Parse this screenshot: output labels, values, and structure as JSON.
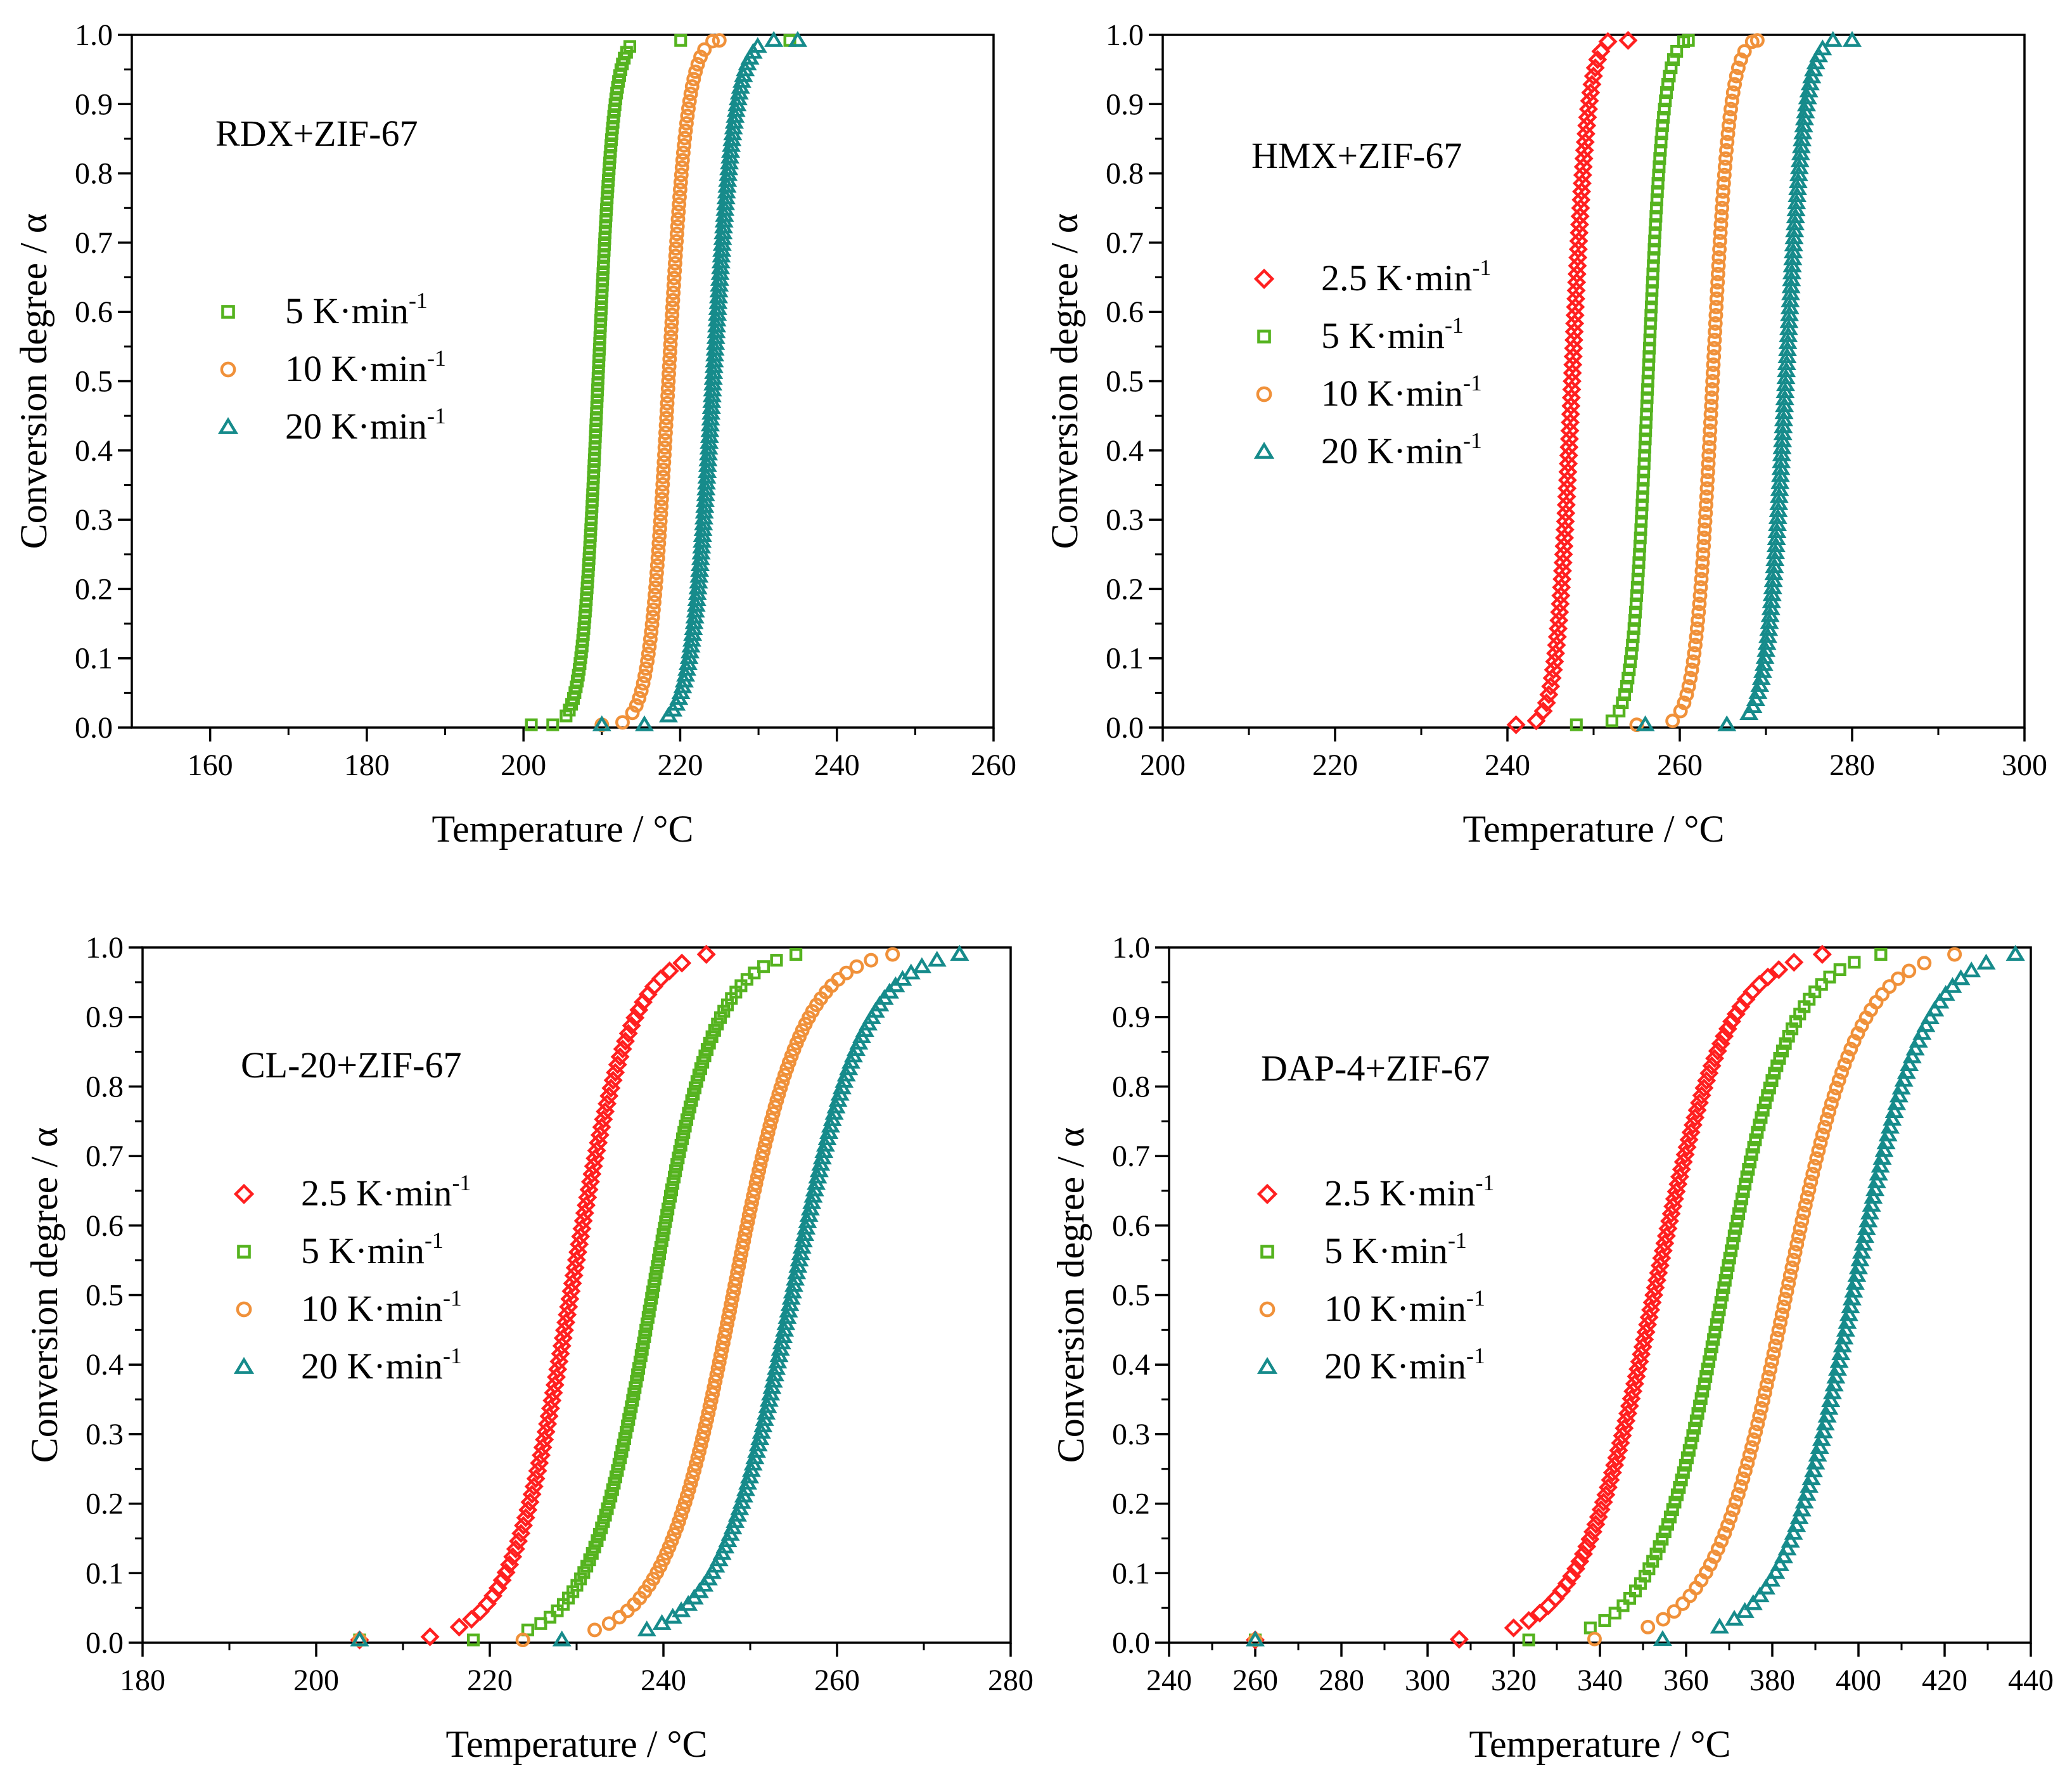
{
  "chart_data": [
    {
      "type": "scatter",
      "panel_label": "RDX+ZIF-67",
      "xlabel": "Temperature / °C",
      "ylabel": "Conversion degree / α",
      "xlim": [
        150,
        260
      ],
      "ylim": [
        0.0,
        1.0
      ],
      "xticks": [
        "160",
        "180",
        "200",
        "220",
        "240",
        "260"
      ],
      "yticks": [
        "0.0",
        "0.1",
        "0.2",
        "0.3",
        "0.4",
        "0.5",
        "0.6",
        "0.7",
        "0.8",
        "0.9",
        "1.0"
      ],
      "legend_position": "left-middle",
      "series": [
        {
          "name": "5 K·min",
          "name_sup": "-1",
          "marker": "square",
          "color": "#55b31f",
          "onset": 201,
          "mid": 209.5,
          "end": 234,
          "width": 1.0,
          "count": 120
        },
        {
          "name": "10 K·min",
          "name_sup": "-1",
          "marker": "circle",
          "color": "#f0913a",
          "onset": 210,
          "mid": 218.5,
          "end": 225,
          "width": 1.2,
          "count": 95
        },
        {
          "name": "20 K·min",
          "name_sup": "-1",
          "marker": "triangle",
          "color": "#168b8b",
          "onset": 210,
          "mid": 224.2,
          "end": 235,
          "width": 1.4,
          "count": 120
        }
      ]
    },
    {
      "type": "scatter",
      "panel_label": "HMX+ZIF-67",
      "xlabel": "Temperature / °C",
      "ylabel": "Conversion degree / α",
      "xlim": [
        200,
        300
      ],
      "ylim": [
        0.0,
        1.0
      ],
      "xticks": [
        "200",
        "220",
        "240",
        "260",
        "280",
        "300"
      ],
      "yticks": [
        "0.0",
        "0.1",
        "0.2",
        "0.3",
        "0.4",
        "0.5",
        "0.6",
        "0.7",
        "0.8",
        "0.9",
        "1.0"
      ],
      "legend_position": "left-middle",
      "series": [
        {
          "name": "2.5 K·min",
          "name_sup": "-1",
          "marker": "diamond",
          "color": "#ff2020",
          "onset": 241,
          "mid": 247.5,
          "end": 254,
          "width": 0.9,
          "count": 85
        },
        {
          "name": "5 K·min",
          "name_sup": "-1",
          "marker": "square",
          "color": "#55b31f",
          "onset": 248,
          "mid": 256.3,
          "end": 261,
          "width": 0.9,
          "count": 85
        },
        {
          "name": "10 K·min",
          "name_sup": "-1",
          "marker": "circle",
          "color": "#f0913a",
          "onset": 255,
          "mid": 263.8,
          "end": 269,
          "width": 1.0,
          "count": 85
        },
        {
          "name": "20 K·min",
          "name_sup": "-1",
          "marker": "triangle",
          "color": "#168b8b",
          "onset": 256,
          "mid": 272.3,
          "end": 280,
          "width": 1.1,
          "count": 100
        }
      ]
    },
    {
      "type": "scatter",
      "panel_label": "CL-20+ZIF-67",
      "xlabel": "Temperature / °C",
      "ylabel": "Conversion degree / α",
      "xlim": [
        180,
        280
      ],
      "ylim": [
        0.0,
        1.0
      ],
      "xticks": [
        "180",
        "200",
        "220",
        "240",
        "260",
        "280"
      ],
      "yticks": [
        "0.0",
        "0.1",
        "0.2",
        "0.3",
        "0.4",
        "0.5",
        "0.6",
        "0.7",
        "0.8",
        "0.9",
        "1.0"
      ],
      "legend_position": "left-middle",
      "series": [
        {
          "name": "2.5 K·min",
          "name_sup": "-1",
          "marker": "diamond",
          "color": "#ff2020",
          "onset": 205,
          "mid": 229.3,
          "end": 239,
          "width": 3.4,
          "count": 90
        },
        {
          "name": "5 K·min",
          "name_sup": "-1",
          "marker": "square",
          "color": "#55b31f",
          "onset": 205,
          "mid": 238.7,
          "end": 247,
          "width": 3.6,
          "count": 110
        },
        {
          "name": "10 K·min",
          "name_sup": "-1",
          "marker": "circle",
          "color": "#f0913a",
          "onset": 205,
          "mid": 248,
          "end": 256,
          "width": 4.0,
          "count": 110
        },
        {
          "name": "20 K·min",
          "name_sup": "-1",
          "marker": "triangle",
          "color": "#168b8b",
          "onset": 205,
          "mid": 254.8,
          "end": 266,
          "width": 4.2,
          "count": 110
        }
      ]
    },
    {
      "type": "scatter",
      "panel_label": "DAP-4+ZIF-67",
      "xlabel": "Temperature / °C",
      "ylabel": "Conversion degree / α",
      "xlim": [
        240,
        440
      ],
      "ylim": [
        0.0,
        1.0
      ],
      "xticks": [
        "240",
        "260",
        "280",
        "300",
        "320",
        "340",
        "360",
        "380",
        "400",
        "420",
        "440"
      ],
      "yticks": [
        "0.0",
        "0.1",
        "0.2",
        "0.3",
        "0.4",
        "0.5",
        "0.6",
        "0.7",
        "0.8",
        "0.9",
        "1.0"
      ],
      "legend_position": "left-middle",
      "series": [
        {
          "name": "2.5 K·min",
          "name_sup": "-1",
          "marker": "diamond",
          "color": "#ff2020",
          "onset": 260,
          "mid": 352.5,
          "end": 374,
          "width": 8.5,
          "count": 95
        },
        {
          "name": "5 K·min",
          "name_sup": "-1",
          "marker": "square",
          "color": "#55b31f",
          "onset": 260,
          "mid": 368.4,
          "end": 384,
          "width": 8.0,
          "count": 95
        },
        {
          "name": "10 K·min",
          "name_sup": "-1",
          "marker": "circle",
          "color": "#f0913a",
          "onset": 260,
          "mid": 383.2,
          "end": 406,
          "width": 8.5,
          "count": 90
        },
        {
          "name": "20 K·min",
          "name_sup": "-1",
          "marker": "triangle",
          "color": "#168b8b",
          "onset": 260,
          "mid": 398.7,
          "end": 416,
          "width": 8.2,
          "count": 90
        }
      ]
    }
  ]
}
